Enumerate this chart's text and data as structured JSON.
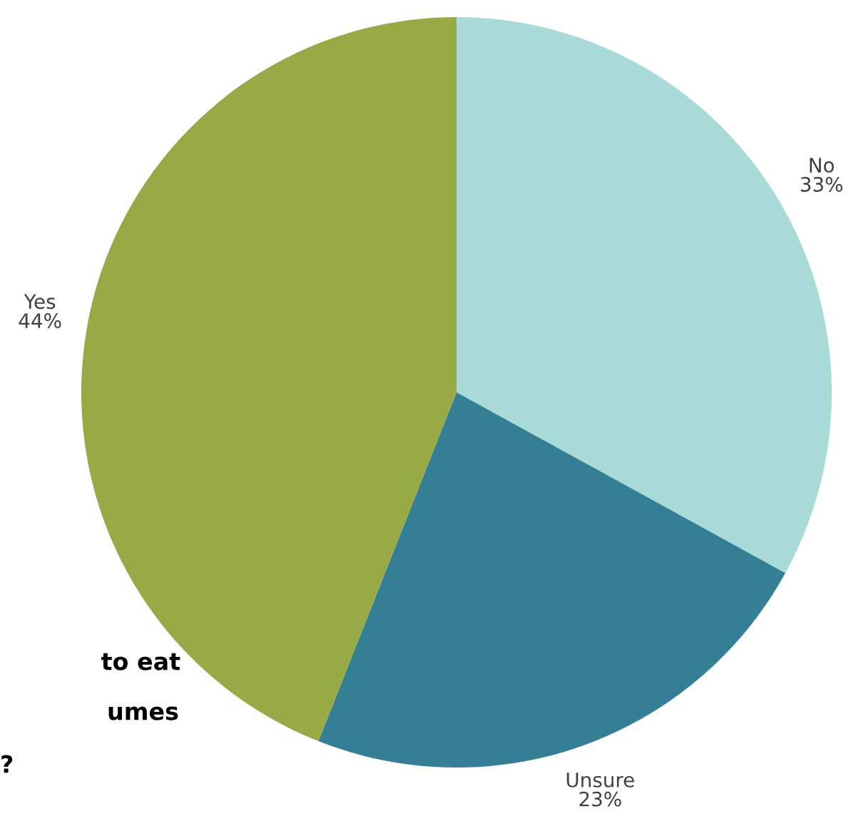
{
  "chart_data": {
    "type": "pie",
    "categories": [
      "No",
      "Unsure",
      "Yes"
    ],
    "values": [
      33,
      23,
      44
    ],
    "colors": [
      "#a8dad8",
      "#347f96",
      "#98aa45"
    ],
    "value_labels": [
      "33%",
      "23%",
      "44%"
    ],
    "annotations": [
      "to eat",
      "umes",
      "?"
    ]
  }
}
